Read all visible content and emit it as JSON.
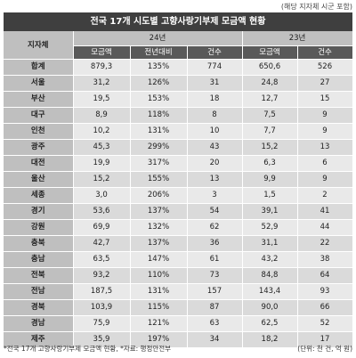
{
  "top_note": "(해당 지자체 시군 포함)",
  "title": "전국 17개 시도별 고향사랑기부제 모금액 현황",
  "headers": {
    "region": "지자체",
    "year1": "24년",
    "year2": "23년",
    "sub": [
      "모금액",
      "전년대비",
      "건수",
      "모금액",
      "건수"
    ]
  },
  "rows": [
    {
      "region": "합계",
      "c": [
        "879,3",
        "135%",
        "774",
        "650,6",
        "526"
      ]
    },
    {
      "region": "서울",
      "c": [
        "31,2",
        "126%",
        "31",
        "24,8",
        "27"
      ]
    },
    {
      "region": "부산",
      "c": [
        "19,5",
        "153%",
        "18",
        "12,7",
        "15"
      ]
    },
    {
      "region": "대구",
      "c": [
        "8,9",
        "118%",
        "8",
        "7,5",
        "9"
      ]
    },
    {
      "region": "인천",
      "c": [
        "10,2",
        "131%",
        "10",
        "7,7",
        "9"
      ]
    },
    {
      "region": "광주",
      "c": [
        "45,3",
        "299%",
        "43",
        "15,2",
        "13"
      ]
    },
    {
      "region": "대전",
      "c": [
        "19,9",
        "317%",
        "20",
        "6,3",
        "6"
      ]
    },
    {
      "region": "울산",
      "c": [
        "15,2",
        "155%",
        "13",
        "9,9",
        "9"
      ]
    },
    {
      "region": "세종",
      "c": [
        "3,0",
        "206%",
        "3",
        "1,5",
        "2"
      ]
    },
    {
      "region": "경기",
      "c": [
        "53,6",
        "137%",
        "54",
        "39,1",
        "41"
      ]
    },
    {
      "region": "강원",
      "c": [
        "69,9",
        "132%",
        "62",
        "52,9",
        "44"
      ]
    },
    {
      "region": "충북",
      "c": [
        "42,7",
        "137%",
        "36",
        "31,1",
        "22"
      ]
    },
    {
      "region": "충남",
      "c": [
        "63,5",
        "147%",
        "61",
        "43,2",
        "38"
      ]
    },
    {
      "region": "전북",
      "c": [
        "93,2",
        "110%",
        "73",
        "84,8",
        "64"
      ]
    },
    {
      "region": "전남",
      "c": [
        "187,5",
        "131%",
        "157",
        "143,4",
        "93"
      ]
    },
    {
      "region": "경북",
      "c": [
        "103,9",
        "115%",
        "87",
        "90,0",
        "66"
      ]
    },
    {
      "region": "경남",
      "c": [
        "75,9",
        "121%",
        "63",
        "62,5",
        "52"
      ]
    },
    {
      "region": "제주",
      "c": [
        "35,9",
        "197%",
        "34",
        "18,2",
        "17"
      ]
    }
  ],
  "footer": {
    "source": "*전국 17개 고향사랑기부제 모금액 현황, *자료: 행정안전부",
    "unit": "(단위: 천 건, 억 원)"
  }
}
